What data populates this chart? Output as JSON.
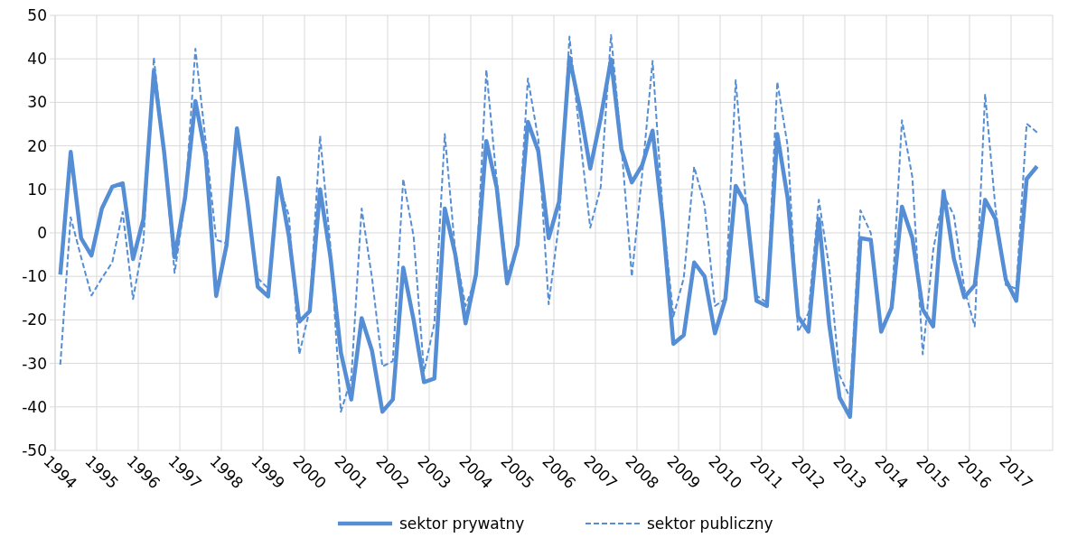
{
  "chart_data": {
    "type": "line",
    "categories": [
      "1994",
      null,
      null,
      null,
      "1995",
      null,
      null,
      null,
      "1996",
      null,
      null,
      null,
      "1997",
      null,
      null,
      null,
      "1998",
      null,
      null,
      null,
      "1999",
      null,
      null,
      null,
      "2000",
      null,
      null,
      null,
      "2001",
      null,
      null,
      null,
      "2002",
      null,
      null,
      null,
      "2003",
      null,
      null,
      null,
      "2004",
      null,
      null,
      null,
      "2005",
      null,
      null,
      null,
      "2006",
      null,
      null,
      null,
      "2007",
      null,
      null,
      null,
      "2008",
      null,
      null,
      null,
      "2009",
      null,
      null,
      null,
      "2010",
      null,
      null,
      null,
      "2011",
      null,
      null,
      null,
      "2012",
      null,
      null,
      null,
      "2013",
      null,
      null,
      null,
      "2014",
      null,
      null,
      null,
      "2015",
      null,
      null,
      null,
      "2016",
      null,
      null,
      null,
      "2017",
      null,
      null,
      null
    ],
    "series": [
      {
        "name": "sektor prywatny",
        "color": "#558ed5",
        "line_style": "solid",
        "values": [
          -9.6,
          18.6,
          -1.2,
          -5.2,
          5.6,
          10.6,
          11.4,
          -6,
          3.2,
          37.1,
          18.4,
          -5.6,
          8,
          30.3,
          17.6,
          -14.5,
          -2.8,
          24,
          7.2,
          -12.4,
          -14.6,
          12.6,
          -0.8,
          -20.4,
          -18,
          10,
          -5.6,
          -27.5,
          -38.3,
          -19.6,
          -27.1,
          -41.1,
          -38.3,
          -8,
          -20,
          -34.3,
          -33.5,
          5.6,
          -4.8,
          -20.8,
          -9.6,
          21.1,
          10.4,
          -11.6,
          -2.8,
          25.5,
          18.8,
          -1.2,
          7.2,
          40.3,
          28.7,
          14.8,
          26.3,
          39.9,
          19.2,
          11.6,
          15.6,
          23.5,
          2.4,
          -25.5,
          -23.5,
          -6.8,
          -10,
          -23.1,
          -15.2,
          10.8,
          6.4,
          -15.6,
          -16.8,
          22.7,
          8,
          -19.2,
          -22.7,
          3.2,
          -21.1,
          -37.9,
          -42.3,
          -1.2,
          -1.6,
          -22.7,
          -17.2,
          6,
          -1.2,
          -17.6,
          -21.5,
          9.6,
          -6,
          -14.8,
          -12,
          7.6,
          3.2,
          -10.8,
          -15.6,
          12.4,
          15.3,
          null
        ]
      },
      {
        "name": "sektor publiczny",
        "color": "#558ed5",
        "line_style": "dashed",
        "values": [
          -30.3,
          3.6,
          -5.6,
          -14.4,
          -10.4,
          -6.8,
          4.8,
          -15.2,
          -2,
          40.3,
          18.4,
          -9.2,
          7.2,
          42.3,
          20.8,
          -1.6,
          -2.4,
          23,
          6.4,
          -10.4,
          -12.8,
          11.2,
          4,
          -27.9,
          -17.6,
          22.3,
          -3.2,
          -41.1,
          -33.5,
          5.6,
          -10.4,
          -30.7,
          -29.5,
          12.4,
          -0.8,
          -31.9,
          -20.8,
          22.7,
          -4,
          -16.8,
          -10.4,
          37.5,
          12,
          -9.6,
          -3.2,
          35.5,
          21.5,
          -16.4,
          2.4,
          45.1,
          22.3,
          1.2,
          10.4,
          45.5,
          20,
          -10,
          13.6,
          39.5,
          4,
          -19.2,
          -10.4,
          15.2,
          6.4,
          -16.8,
          -15.2,
          35.1,
          6.4,
          -14.4,
          -16,
          34.7,
          20,
          -22.7,
          -18.4,
          7.6,
          -8,
          -32.7,
          -37.9,
          5.2,
          0,
          -22.3,
          -16.8,
          25.9,
          12.8,
          -27.9,
          -4,
          8.8,
          4,
          -12.8,
          -21.5,
          31.9,
          5.6,
          -12,
          -12.8,
          25.1,
          23.1,
          null
        ]
      }
    ],
    "ylim": [
      -50,
      50
    ],
    "yticks": [
      -50,
      -40,
      -30,
      -20,
      -10,
      0,
      10,
      20,
      30,
      40,
      50
    ],
    "grid": true,
    "legend": "bottom",
    "marker": "none"
  }
}
